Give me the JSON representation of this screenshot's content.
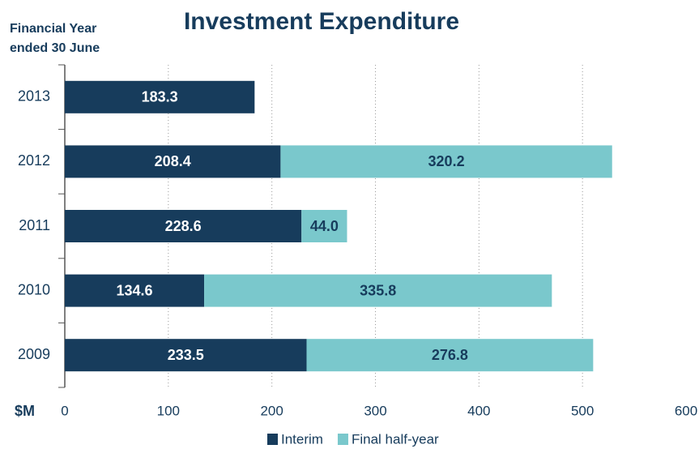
{
  "chart_data": {
    "type": "bar",
    "orientation": "horizontal",
    "stacked": true,
    "title": "Investment Expenditure",
    "y_label": [
      "Financial Year",
      "ended 30 June"
    ],
    "x_label": "$M",
    "categories": [
      "2013",
      "2012",
      "2011",
      "2010",
      "2009"
    ],
    "series": [
      {
        "name": "Interim",
        "color": "#173c5c",
        "values": [
          183.3,
          208.4,
          228.6,
          134.6,
          233.5
        ]
      },
      {
        "name": "Final half-year",
        "color": "#7ac8cc",
        "values": [
          null,
          320.2,
          44.0,
          335.8,
          276.8
        ],
        "value_labels": [
          null,
          "320.2",
          "44.0",
          "335.8",
          "276.8"
        ]
      }
    ],
    "xlim": [
      0,
      600
    ],
    "xticks": [
      0,
      100,
      200,
      300,
      400,
      500,
      600
    ],
    "grid": true
  }
}
